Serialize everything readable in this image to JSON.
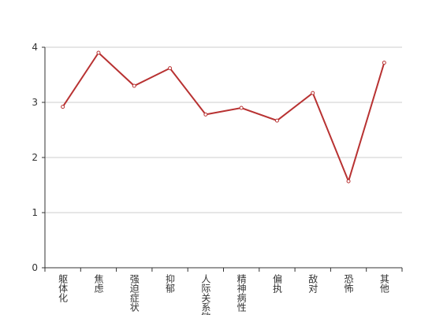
{
  "chart_data": {
    "type": "line",
    "categories": [
      "躯体化",
      "焦虑",
      "强迫症状",
      "抑郁",
      "人际关系敏感",
      "精神病性",
      "偏执",
      "敌对",
      "恐怖",
      "其他"
    ],
    "values": [
      2.92,
      3.9,
      3.3,
      3.62,
      2.78,
      2.9,
      2.67,
      3.17,
      1.57,
      3.72
    ],
    "color": "#b83232",
    "ylim": [
      0,
      4
    ],
    "yticks": [
      0,
      1,
      2,
      3,
      4
    ],
    "grid": true
  }
}
